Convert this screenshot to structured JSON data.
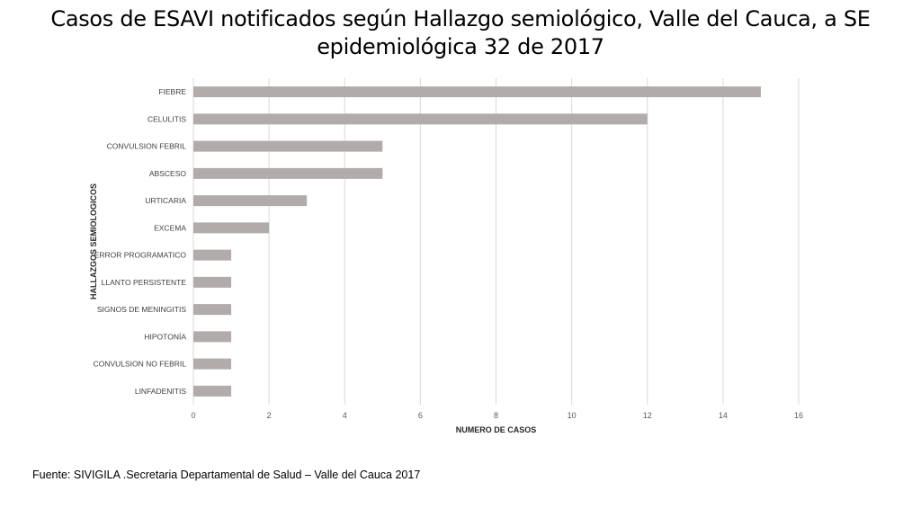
{
  "title": "Casos de ESAVI notificados según Hallazgo semiológico, Valle del Cauca, a SE epidemiológica 32 de 2017",
  "source": "Fuente: SIVIGILA .Secretaria Departamental de Salud – Valle del Cauca 2017",
  "colors": {
    "bar": "#b1acab",
    "grid": "#d9d9d9"
  },
  "chart_data": {
    "type": "bar",
    "orientation": "horizontal",
    "title": "Casos de ESAVI notificados según Hallazgo semiológico, Valle del Cauca, a SE epidemiológica 32 de 2017",
    "xlabel": "NUMERO DE CASOS",
    "ylabel": "HALLAZGOS SEMIOLOGICOS",
    "categories": [
      "FIEBRE",
      "CELULITIS",
      "CONVULSION FEBRIL",
      "ABSCESO",
      "URTICARIA",
      "EXCEMA",
      "ERROR PROGRAMATICO",
      "LLANTO PERSISTENTE",
      "SIGNOS DE MENINGITIS",
      "HIPOTONÍA",
      "CONVULSION NO FEBRIL",
      "LINFADENITIS"
    ],
    "values": [
      15,
      12,
      5,
      5,
      3,
      2,
      1,
      1,
      1,
      1,
      1,
      1
    ],
    "xlim": [
      0,
      16
    ],
    "xticks": [
      0,
      2,
      4,
      6,
      8,
      10,
      12,
      14,
      16
    ],
    "grid": "vertical",
    "legend": "none"
  }
}
